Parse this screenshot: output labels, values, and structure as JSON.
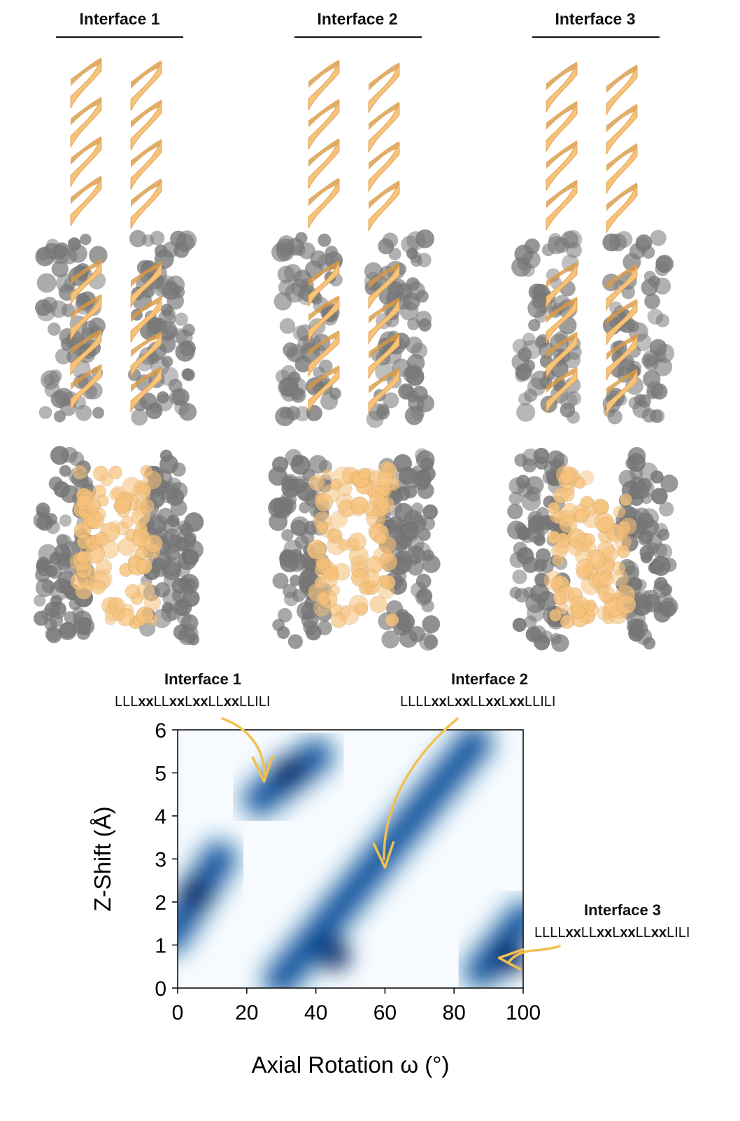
{
  "columns": [
    {
      "title": "Interface 1"
    },
    {
      "title": "Interface 2"
    },
    {
      "title": "Interface 3"
    }
  ],
  "colors": {
    "helix": "#f7c27a",
    "helix_dark": "#d99a45",
    "atom_grey": "#6b6b6b",
    "heat_max": "#08306b",
    "heat_min": "#f7fbff",
    "arrow": "#f2c04f"
  },
  "annotations": [
    {
      "title": "Interface 1",
      "sequence": [
        [
          "LLL",
          0
        ],
        [
          "xx",
          1
        ],
        [
          "LL",
          0
        ],
        [
          "xx",
          1
        ],
        [
          "L",
          0
        ],
        [
          "xx",
          1
        ],
        [
          "LL",
          0
        ],
        [
          "xx",
          1
        ],
        [
          "LLILI",
          0
        ]
      ],
      "x": 25,
      "y": 4.8
    },
    {
      "title": "Interface 2",
      "sequence": [
        [
          "LLLL",
          0
        ],
        [
          "xx",
          1
        ],
        [
          "L",
          0
        ],
        [
          "xx",
          1
        ],
        [
          "LL",
          0
        ],
        [
          "xx",
          1
        ],
        [
          "L",
          0
        ],
        [
          "xx",
          1
        ],
        [
          "LLILI",
          0
        ]
      ],
      "x": 60,
      "y": 2.8
    },
    {
      "title": "Interface 3",
      "sequence": [
        [
          "LLLL",
          0
        ],
        [
          "xx",
          1
        ],
        [
          "LL",
          0
        ],
        [
          "xx",
          1
        ],
        [
          "L",
          0
        ],
        [
          "xx",
          1
        ],
        [
          "LL",
          0
        ],
        [
          "xx",
          1
        ],
        [
          "LILI",
          0
        ]
      ],
      "x": 93,
      "y": 0.7
    }
  ],
  "chart_data": {
    "type": "heatmap",
    "title": "",
    "xlabel": "Axial Rotation ω (°)",
    "ylabel": "Z-Shift (Å)",
    "xlim": [
      0,
      100
    ],
    "ylim": [
      0,
      6
    ],
    "xticks": [
      0,
      20,
      40,
      60,
      80,
      100
    ],
    "yticks": [
      0,
      1,
      2,
      3,
      4,
      5,
      6
    ],
    "colormap": "Blues",
    "high_density_bands": [
      {
        "from": [
          -2,
          1.2
        ],
        "to": [
          12,
          3.0
        ],
        "peak": [
          5,
          2.2
        ]
      },
      {
        "from": [
          24,
          4.4
        ],
        "to": [
          40,
          5.4
        ],
        "peak": [
          32,
          5.0
        ]
      },
      {
        "from": [
          30,
          0.2
        ],
        "to": [
          86,
          5.7
        ],
        "peak": [
          45,
          0.8
        ]
      },
      {
        "from": [
          88,
          0.4
        ],
        "to": [
          100,
          1.6
        ],
        "peak": [
          96,
          0.7
        ]
      }
    ]
  }
}
